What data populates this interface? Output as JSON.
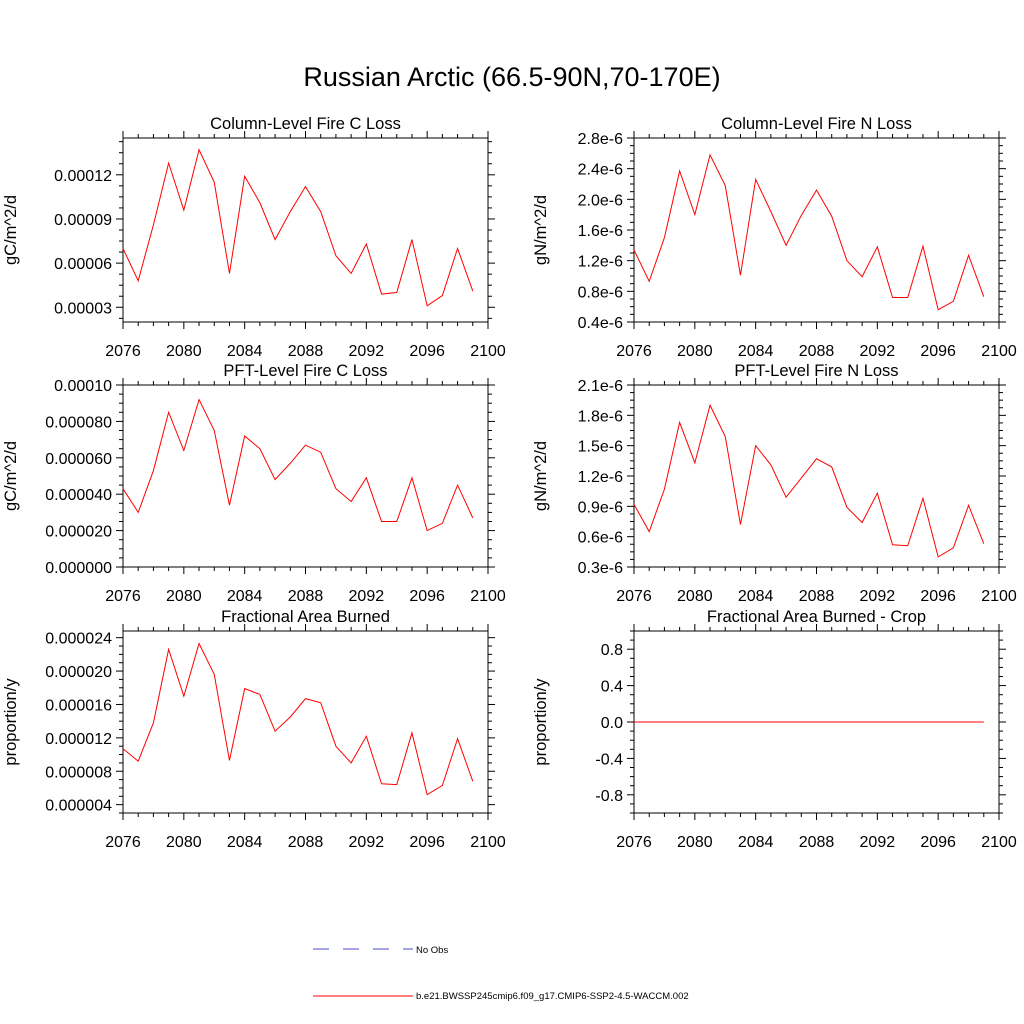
{
  "figure": {
    "title": "Russian Arctic (66.5-90N,70-170E)"
  },
  "legend": {
    "placement": "bottom-center",
    "entries": [
      {
        "label": "No Obs",
        "color": "#4a4ad0",
        "style": "dashed"
      },
      {
        "label": "b.e21.BWSSP245cmip6.f09_g17.CMIP6-SSP2-4.5-WACCM.002",
        "color": "#ff0000",
        "style": "solid"
      }
    ]
  },
  "chart_data": [
    {
      "type": "line",
      "title": "Column-Level Fire C Loss",
      "xlabel": "",
      "ylabel": "gC/m^2/d",
      "xlim": [
        2076,
        2100
      ],
      "ylim": [
        2e-05,
        0.000145
      ],
      "xticks": [
        "2076",
        "2080",
        "2084",
        "2088",
        "2092",
        "2096",
        "2100"
      ],
      "yticks": [
        {
          "v": 3e-05,
          "label": "0.00003"
        },
        {
          "v": 6e-05,
          "label": "0.00006"
        },
        {
          "v": 9e-05,
          "label": "0.00009"
        },
        {
          "v": 0.00012,
          "label": "0.00012"
        }
      ],
      "grid": false,
      "series": [
        {
          "color": "#ff0000",
          "x": [
            2076,
            2077,
            2078,
            2079,
            2080,
            2081,
            2082,
            2083,
            2084,
            2085,
            2086,
            2087,
            2088,
            2089,
            2090,
            2091,
            2092,
            2093,
            2094,
            2095,
            2096,
            2097,
            2098,
            2099
          ],
          "y": [
            7e-05,
            4.8e-05,
            8.6e-05,
            0.000128,
            9.6e-05,
            0.000137,
            0.000115,
            5.3e-05,
            0.000119,
            0.000101,
            7.6e-05,
            9.5e-05,
            0.000112,
            9.5e-05,
            6.5e-05,
            5.3e-05,
            7.3e-05,
            3.9e-05,
            4e-05,
            7.6e-05,
            3.1e-05,
            3.8e-05,
            7e-05,
            4.1e-05
          ]
        }
      ]
    },
    {
      "type": "line",
      "title": "Column-Level Fire N Loss",
      "xlabel": "",
      "ylabel": "gN/m^2/d",
      "xlim": [
        2076,
        2100
      ],
      "ylim": [
        4e-07,
        2.8e-06
      ],
      "xticks": [
        "2076",
        "2080",
        "2084",
        "2088",
        "2092",
        "2096",
        "2100"
      ],
      "yticks": [
        {
          "v": 4e-07,
          "label": "0.4e-6"
        },
        {
          "v": 8e-07,
          "label": "0.8e-6"
        },
        {
          "v": 1.2e-06,
          "label": "1.2e-6"
        },
        {
          "v": 1.6e-06,
          "label": "1.6e-6"
        },
        {
          "v": 2e-06,
          "label": "2.0e-6"
        },
        {
          "v": 2.4e-06,
          "label": "2.4e-6"
        },
        {
          "v": 2.8e-06,
          "label": "2.8e-6"
        }
      ],
      "grid": false,
      "series": [
        {
          "color": "#ff0000",
          "x": [
            2076,
            2077,
            2078,
            2079,
            2080,
            2081,
            2082,
            2083,
            2084,
            2085,
            2086,
            2087,
            2088,
            2089,
            2090,
            2091,
            2092,
            2093,
            2094,
            2095,
            2096,
            2097,
            2098,
            2099
          ],
          "y": [
            1.34e-06,
            9.3e-07,
            1.5e-06,
            2.37e-06,
            1.8e-06,
            2.58e-06,
            2.18e-06,
            1.01e-06,
            2.26e-06,
            1.84e-06,
            1.4e-06,
            1.79e-06,
            2.12e-06,
            1.78e-06,
            1.2e-06,
            9.9e-07,
            1.38e-06,
            7.2e-07,
            7.2e-07,
            1.39e-06,
            5.6e-07,
            6.7e-07,
            1.27e-06,
            7.3e-07
          ]
        }
      ]
    },
    {
      "type": "line",
      "title": "PFT-Level Fire C Loss",
      "xlabel": "",
      "ylabel": "gC/m^2/d",
      "xlim": [
        2076,
        2100
      ],
      "ylim": [
        0.0,
        0.0001
      ],
      "xticks": [
        "2076",
        "2080",
        "2084",
        "2088",
        "2092",
        "2096",
        "2100"
      ],
      "yticks": [
        {
          "v": 0.0,
          "label": "0.000000"
        },
        {
          "v": 2e-05,
          "label": "0.000020"
        },
        {
          "v": 4e-05,
          "label": "0.000040"
        },
        {
          "v": 6e-05,
          "label": "0.000060"
        },
        {
          "v": 8e-05,
          "label": "0.000080"
        },
        {
          "v": 0.0001,
          "label": "0.00010"
        }
      ],
      "grid": false,
      "series": [
        {
          "color": "#ff0000",
          "x": [
            2076,
            2077,
            2078,
            2079,
            2080,
            2081,
            2082,
            2083,
            2084,
            2085,
            2086,
            2087,
            2088,
            2089,
            2090,
            2091,
            2092,
            2093,
            2094,
            2095,
            2096,
            2097,
            2098,
            2099
          ],
          "y": [
            4.3e-05,
            3e-05,
            5.3e-05,
            8.5e-05,
            6.4e-05,
            9.2e-05,
            7.5e-05,
            3.4e-05,
            7.2e-05,
            6.5e-05,
            4.8e-05,
            5.7e-05,
            6.7e-05,
            6.3e-05,
            4.3e-05,
            3.6e-05,
            4.9e-05,
            2.5e-05,
            2.5e-05,
            4.9e-05,
            2e-05,
            2.4e-05,
            4.5e-05,
            2.7e-05
          ]
        }
      ]
    },
    {
      "type": "line",
      "title": "PFT-Level Fire N Loss",
      "xlabel": "",
      "ylabel": "gN/m^2/d",
      "xlim": [
        2076,
        2100
      ],
      "ylim": [
        3e-07,
        2.1e-06
      ],
      "xticks": [
        "2076",
        "2080",
        "2084",
        "2088",
        "2092",
        "2096",
        "2100"
      ],
      "yticks": [
        {
          "v": 3e-07,
          "label": "0.3e-6"
        },
        {
          "v": 6e-07,
          "label": "0.6e-6"
        },
        {
          "v": 9e-07,
          "label": "0.9e-6"
        },
        {
          "v": 1.2e-06,
          "label": "1.2e-6"
        },
        {
          "v": 1.5e-06,
          "label": "1.5e-6"
        },
        {
          "v": 1.8e-06,
          "label": "1.8e-6"
        },
        {
          "v": 2.1e-06,
          "label": "2.1e-6"
        }
      ],
      "grid": false,
      "series": [
        {
          "color": "#ff0000",
          "x": [
            2076,
            2077,
            2078,
            2079,
            2080,
            2081,
            2082,
            2083,
            2084,
            2085,
            2086,
            2087,
            2088,
            2089,
            2090,
            2091,
            2092,
            2093,
            2094,
            2095,
            2096,
            2097,
            2098,
            2099
          ],
          "y": [
            9.2e-07,
            6.5e-07,
            1.07e-06,
            1.73e-06,
            1.33e-06,
            1.9e-06,
            1.59e-06,
            7.2e-07,
            1.5e-06,
            1.31e-06,
            9.9e-07,
            1.18e-06,
            1.37e-06,
            1.29e-06,
            8.9e-07,
            7.4e-07,
            1.03e-06,
            5.2e-07,
            5.1e-07,
            9.8e-07,
            4e-07,
            4.9e-07,
            9.1e-07,
            5.3e-07
          ]
        }
      ]
    },
    {
      "type": "line",
      "title": "Fractional Area Burned",
      "xlabel": "",
      "ylabel": "proportion/y",
      "xlim": [
        2076,
        2100
      ],
      "ylim": [
        3e-06,
        2.48e-05
      ],
      "xticks": [
        "2076",
        "2080",
        "2084",
        "2088",
        "2092",
        "2096",
        "2100"
      ],
      "yticks": [
        {
          "v": 4e-06,
          "label": "0.000004"
        },
        {
          "v": 8e-06,
          "label": "0.000008"
        },
        {
          "v": 1.2e-05,
          "label": "0.000012"
        },
        {
          "v": 1.6e-05,
          "label": "0.000016"
        },
        {
          "v": 2e-05,
          "label": "0.000020"
        },
        {
          "v": 2.4e-05,
          "label": "0.000024"
        }
      ],
      "grid": false,
      "series": [
        {
          "color": "#ff0000",
          "x": [
            2076,
            2077,
            2078,
            2079,
            2080,
            2081,
            2082,
            2083,
            2084,
            2085,
            2086,
            2087,
            2088,
            2089,
            2090,
            2091,
            2092,
            2093,
            2094,
            2095,
            2096,
            2097,
            2098,
            2099
          ],
          "y": [
            1.07e-05,
            9.2e-06,
            1.38e-05,
            2.26e-05,
            1.7e-05,
            2.33e-05,
            1.96e-05,
            9.3e-06,
            1.79e-05,
            1.72e-05,
            1.28e-05,
            1.45e-05,
            1.67e-05,
            1.62e-05,
            1.1e-05,
            9e-06,
            1.22e-05,
            6.5e-06,
            6.4e-06,
            1.26e-05,
            5.2e-06,
            6.3e-06,
            1.19e-05,
            6.8e-06
          ]
        }
      ]
    },
    {
      "type": "line",
      "title": "Fractional Area Burned - Crop",
      "xlabel": "",
      "ylabel": "proportion/y",
      "xlim": [
        2076,
        2100
      ],
      "ylim": [
        -1.0,
        1.0
      ],
      "xticks": [
        "2076",
        "2080",
        "2084",
        "2088",
        "2092",
        "2096",
        "2100"
      ],
      "yticks": [
        {
          "v": -0.8,
          "label": "-0.8"
        },
        {
          "v": -0.4,
          "label": "-0.4"
        },
        {
          "v": 0.0,
          "label": "0.0"
        },
        {
          "v": 0.4,
          "label": "0.4"
        },
        {
          "v": 0.8,
          "label": "0.8"
        }
      ],
      "grid": false,
      "series": [
        {
          "color": "#ff0000",
          "x": [
            2076,
            2077,
            2078,
            2079,
            2080,
            2081,
            2082,
            2083,
            2084,
            2085,
            2086,
            2087,
            2088,
            2089,
            2090,
            2091,
            2092,
            2093,
            2094,
            2095,
            2096,
            2097,
            2098,
            2099
          ],
          "y": [
            0,
            0,
            0,
            0,
            0,
            0,
            0,
            0,
            0,
            0,
            0,
            0,
            0,
            0,
            0,
            0,
            0,
            0,
            0,
            0,
            0,
            0,
            0,
            0
          ]
        }
      ]
    }
  ]
}
